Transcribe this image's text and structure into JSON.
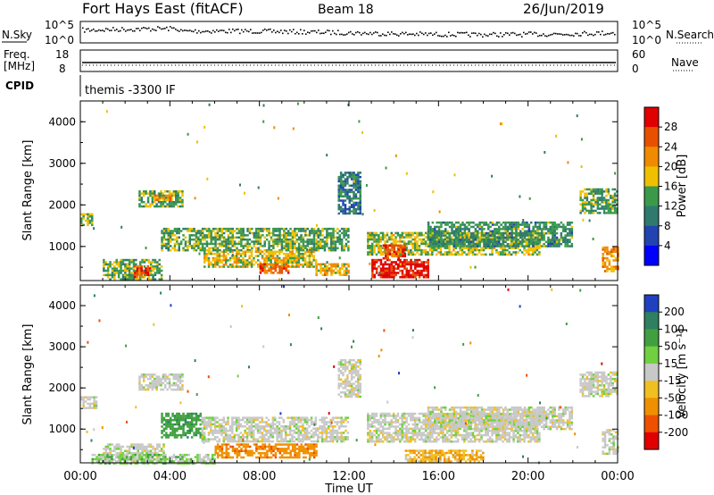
{
  "header": {
    "station": "Fort Hays East (fitACF)",
    "beam": "Beam 18",
    "date": "26/Jun/2019"
  },
  "strip_labels": {
    "nsky": "N.Sky",
    "nsearch": "N.Search",
    "freq_line1": "Freq.",
    "freq_line2": "[MHz]",
    "nave": "Nave",
    "cpid": "CPID",
    "program": "themis -3300 IF"
  },
  "strip_ticks": {
    "noise_left_top": "10^5",
    "noise_left_bottom": "10^0",
    "noise_right_top": "10^5",
    "noise_right_bottom": "10^0",
    "freq_left_top": "18",
    "freq_left_bottom": "8",
    "nave_right_top": "60",
    "nave_right_bottom": "0"
  },
  "chart_data": [
    {
      "type": "heatmap",
      "panel": "power",
      "ylabel": "Slant Range [km]",
      "ylim": [
        180,
        4500
      ],
      "yticks": [
        "1000",
        "2000",
        "3000",
        "4000"
      ],
      "colorbar_label": "Power [dB]",
      "colorbar_ticks": [
        "4",
        "8",
        "12",
        "16",
        "20",
        "24",
        "28"
      ],
      "colors": [
        "#0000ff",
        "#2244b0",
        "#2f7a6e",
        "#3a9a4a",
        "#f0c000",
        "#f08a00",
        "#e85000",
        "#e00000"
      ],
      "regions": [
        {
          "t": [
            0.0,
            0.5
          ],
          "r": [
            1500,
            1800
          ],
          "v": 16
        },
        {
          "t": [
            1.0,
            3.6
          ],
          "r": [
            200,
            700
          ],
          "v": 14
        },
        {
          "t": [
            2.4,
            3.1
          ],
          "r": [
            250,
            550
          ],
          "v": 26
        },
        {
          "t": [
            2.6,
            4.6
          ],
          "r": [
            1950,
            2350
          ],
          "v": 14
        },
        {
          "t": [
            3.3,
            4.0
          ],
          "r": [
            2100,
            2250
          ],
          "v": 22
        },
        {
          "t": [
            3.6,
            12.0
          ],
          "r": [
            900,
            1450
          ],
          "v": 14
        },
        {
          "t": [
            5.5,
            10.5
          ],
          "r": [
            500,
            900
          ],
          "v": 18
        },
        {
          "t": [
            8.0,
            9.3
          ],
          "r": [
            350,
            600
          ],
          "v": 25
        },
        {
          "t": [
            10.5,
            12.0
          ],
          "r": [
            300,
            600
          ],
          "v": 20
        },
        {
          "t": [
            11.5,
            12.5
          ],
          "r": [
            1800,
            2800
          ],
          "v": 10
        },
        {
          "t": [
            12.8,
            20.5
          ],
          "r": [
            800,
            1350
          ],
          "v": 16
        },
        {
          "t": [
            13.0,
            15.5
          ],
          "r": [
            250,
            700
          ],
          "v": 30
        },
        {
          "t": [
            13.5,
            14.5
          ],
          "r": [
            700,
            1050
          ],
          "v": 27
        },
        {
          "t": [
            15.5,
            22.0
          ],
          "r": [
            1000,
            1600
          ],
          "v": 12
        },
        {
          "t": [
            22.3,
            24.0
          ],
          "r": [
            1800,
            2400
          ],
          "v": 14
        },
        {
          "t": [
            23.3,
            24.0
          ],
          "r": [
            400,
            1000
          ],
          "v": 22
        }
      ]
    },
    {
      "type": "heatmap",
      "panel": "velocity",
      "ylabel": "Slant Range [km]",
      "ylim": [
        180,
        4500
      ],
      "yticks": [
        "1000",
        "2000",
        "3000",
        "4000"
      ],
      "xlabel": "Time UT",
      "xticks": [
        "00:00",
        "04:00",
        "08:00",
        "12:00",
        "16:00",
        "20:00",
        "00:00"
      ],
      "colorbar_label": "Velocity [m s⁻¹]",
      "colorbar_ticks": [
        "200",
        "100",
        "50",
        "15",
        "-15",
        "-50",
        "-100",
        "-200"
      ],
      "colors": [
        "#2040c0",
        "#2e8060",
        "#40a040",
        "#70d040",
        "#c8c8c8",
        "#f0c020",
        "#f09000",
        "#ee5000",
        "#e00000"
      ],
      "regions": [
        {
          "t": [
            0.0,
            0.7
          ],
          "r": [
            1500,
            1800
          ],
          "v": 0
        },
        {
          "t": [
            1.0,
            3.7
          ],
          "r": [
            200,
            650
          ],
          "v": 0
        },
        {
          "t": [
            2.6,
            4.6
          ],
          "r": [
            1950,
            2350
          ],
          "v": 0
        },
        {
          "t": [
            3.6,
            5.4
          ],
          "r": [
            800,
            1400
          ],
          "v": 60
        },
        {
          "t": [
            5.4,
            12.0
          ],
          "r": [
            700,
            1300
          ],
          "v": 0
        },
        {
          "t": [
            6.0,
            10.5
          ],
          "r": [
            300,
            650
          ],
          "v": -60
        },
        {
          "t": [
            0.5,
            6.0
          ],
          "r": [
            180,
            400
          ],
          "v": 20
        },
        {
          "t": [
            11.5,
            12.5
          ],
          "r": [
            1800,
            2700
          ],
          "v": 0
        },
        {
          "t": [
            12.8,
            20.5
          ],
          "r": [
            700,
            1400
          ],
          "v": 0
        },
        {
          "t": [
            14.5,
            18.0
          ],
          "r": [
            200,
            500
          ],
          "v": -30
        },
        {
          "t": [
            15.5,
            22.0
          ],
          "r": [
            1000,
            1550
          ],
          "v": 0
        },
        {
          "t": [
            22.3,
            24.0
          ],
          "r": [
            1800,
            2400
          ],
          "v": 0
        },
        {
          "t": [
            23.3,
            24.0
          ],
          "r": [
            400,
            1000
          ],
          "v": 0
        }
      ]
    }
  ]
}
